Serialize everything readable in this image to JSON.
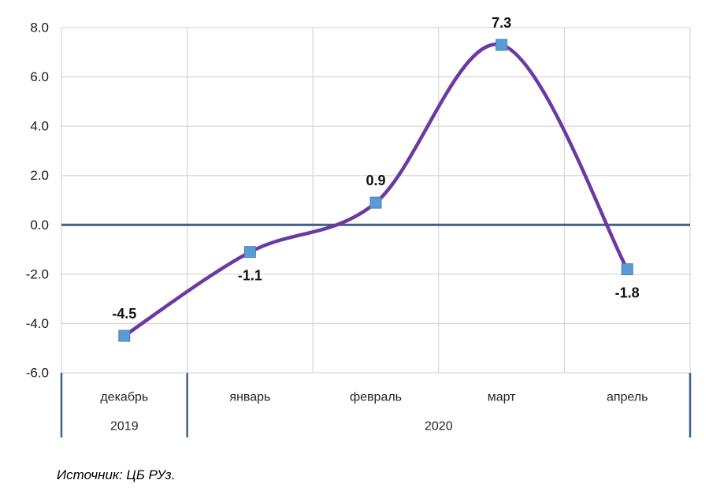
{
  "chart_data": {
    "type": "line",
    "smooth": true,
    "grid": true,
    "legend": "none",
    "categories": [
      "декабрь",
      "январь",
      "февраль",
      "март",
      "апрель"
    ],
    "values": [
      -4.5,
      -1.1,
      0.9,
      7.3,
      -1.8
    ],
    "data_labels": [
      "-4.5",
      "-1.1",
      "0.9",
      "7.3",
      "-1.8"
    ],
    "label_placement": [
      "above",
      "below",
      "above",
      "above",
      "below"
    ],
    "year_groups": [
      {
        "label": "2019",
        "start": 0,
        "end": 0
      },
      {
        "label": "2020",
        "start": 1,
        "end": 4
      }
    ],
    "y_ticks": [
      8,
      6,
      4,
      2,
      0,
      -2,
      -4,
      -6
    ],
    "y_tick_labels": [
      "8.0",
      "6.0",
      "4.0",
      "2.0",
      "0.0",
      "-2.0",
      "-4.0",
      "-6.0"
    ],
    "ylim": [
      -6,
      8
    ],
    "colors": {
      "line": "#6B3AA0",
      "marker_fill": "#5B9BD5",
      "marker_border": "#4A7EBB",
      "zero_line": "#3F6189",
      "separator": "#3F6189",
      "grid": "#D9D9D9"
    }
  },
  "source_note": "Источник: ЦБ РУз."
}
